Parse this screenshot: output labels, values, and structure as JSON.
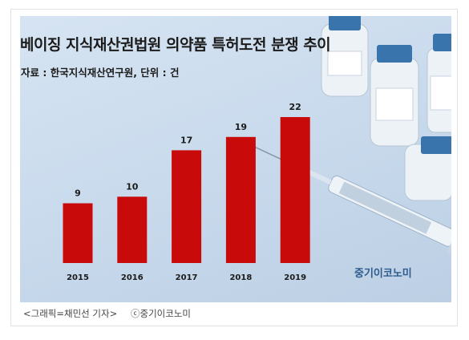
{
  "title": "베이징 지식재산권법원 의약품 특허도전 분쟁 추이",
  "subtitle": "자료 : 한국지식재산연구원, 단위 : 건",
  "brand": "중기이코노미",
  "credit": "<그래픽=채민선 기자>",
  "copyright": "ⓒ중기이코노미",
  "chart_data": {
    "type": "bar",
    "categories": [
      "2015",
      "2016",
      "2017",
      "2018",
      "2019"
    ],
    "values": [
      9,
      10,
      17,
      19,
      22
    ],
    "title": "베이징 지식재산권법원 의약품 특허도전 분쟁 추이",
    "xlabel": "",
    "ylabel": "",
    "ylim": [
      0,
      22
    ],
    "grid": false,
    "bar_color": "#c80a0a",
    "label_color": "#1b1b1b"
  }
}
